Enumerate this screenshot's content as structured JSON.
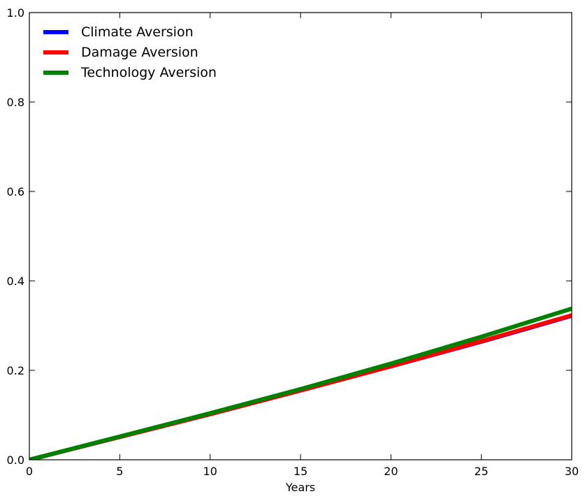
{
  "chart_data": {
    "type": "line",
    "title": "",
    "xlabel": "Years",
    "ylabel": "",
    "xlim": [
      0,
      30
    ],
    "ylim": [
      0,
      1.0
    ],
    "xticks": [
      0,
      5,
      10,
      15,
      20,
      25,
      30
    ],
    "yticks": [
      0.0,
      0.2,
      0.4,
      0.6,
      0.8,
      1.0
    ],
    "xtick_labels": [
      "0",
      "5",
      "10",
      "15",
      "20",
      "25",
      "30"
    ],
    "ytick_labels": [
      "0.0",
      "0.2",
      "0.4",
      "0.6",
      "0.8",
      "1.0"
    ],
    "grid": false,
    "legend_position": "top-left",
    "series": [
      {
        "name": "Climate Aversion",
        "color": "#0000ff",
        "x": [
          0,
          5,
          10,
          15,
          20,
          25,
          30
        ],
        "y": [
          0.0,
          0.051,
          0.102,
          0.155,
          0.209,
          0.264,
          0.322
        ]
      },
      {
        "name": "Damage Aversion",
        "color": "#ff0000",
        "x": [
          0,
          5,
          10,
          15,
          20,
          25,
          30
        ],
        "y": [
          0.0,
          0.051,
          0.102,
          0.155,
          0.209,
          0.265,
          0.323
        ]
      },
      {
        "name": "Technology Aversion",
        "color": "#008000",
        "x": [
          0,
          5,
          10,
          15,
          20,
          25,
          30
        ],
        "y": [
          0.0,
          0.052,
          0.104,
          0.158,
          0.215,
          0.275,
          0.338
        ]
      }
    ]
  }
}
